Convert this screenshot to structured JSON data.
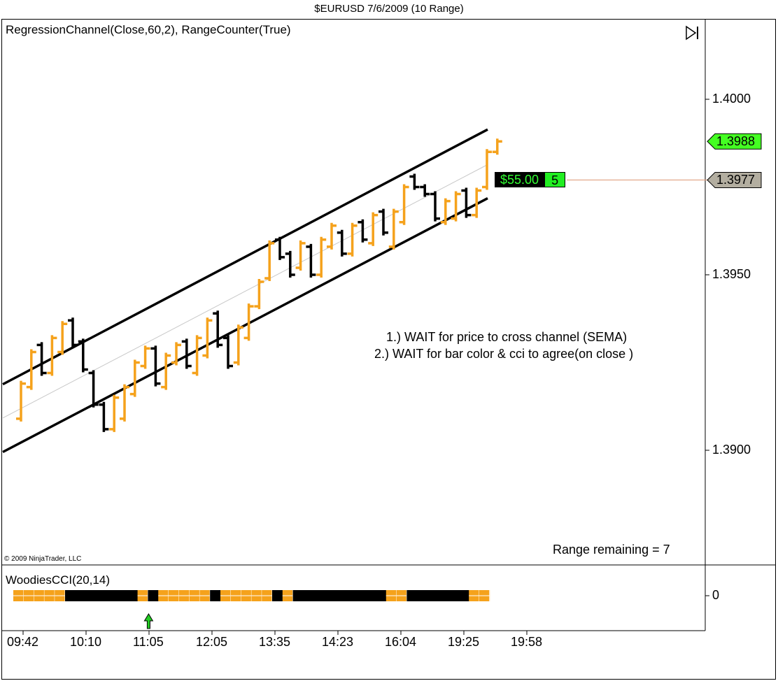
{
  "window": {
    "title": "$EURUSD  7/6/2009 (10 Range)"
  },
  "main_panel": {
    "indicator_label": "RegressionChannel(Close,60,2), RangeCounter(True)",
    "copyright": "© 2009 NinjaTrader, LLC",
    "range_remaining": "Range remaining = 7",
    "notes": [
      "1.) WAIT for price to cross channel (SEMA)",
      "2.) WAIT for bar color & cci to agree(on close )"
    ],
    "position_pl": "$55.00",
    "position_count": "5",
    "icons": [
      "play-to-end-icon"
    ]
  },
  "cci_panel": {
    "indicator_label": "WoodiesCCI(20,14)",
    "zero_label": "0",
    "signal_icon": "up-arrow-icon"
  },
  "colors": {
    "up_bar": "#f5a21c",
    "down_bar": "#000000",
    "channel": "#000000",
    "midline": "#c8c8c8",
    "last_price_tag": "#44ff22",
    "ref_price_tag": "#b3aea0",
    "ref_line": "#e0a080",
    "signal_arrow": "#22cc22"
  },
  "chart_data": [
    {
      "type": "candlestick",
      "title": "$EURUSD  7/6/2009 (10 Range)",
      "y_ticks": [
        1.4,
        1.395,
        1.39
      ],
      "y_tick_labels": [
        "1.4000",
        "1.3950",
        "1.3900"
      ],
      "ylim": [
        1.3855,
        1.4025
      ],
      "x_tick_labels": [
        "09:42",
        "10:10",
        "11:05",
        "12:05",
        "13:35",
        "14:23",
        "16:04",
        "19:25",
        "19:58"
      ],
      "last_price": 1.3988,
      "last_price_label": "1.3988",
      "ref_price": 1.3977,
      "ref_price_label": "1.3977",
      "regression_channel": {
        "upper": [
          1.39188,
          1.39914
        ],
        "middle": [
          1.39092,
          1.39814
        ],
        "lower": [
          1.38995,
          1.39718
        ]
      },
      "bars_note": "10-tick range bars (each bar spans 0.0010); open/close steps",
      "bars": [
        {
          "open": 1.3909,
          "close": 1.3919,
          "dir": "up"
        },
        {
          "open": 1.3918,
          "close": 1.3928,
          "dir": "up"
        },
        {
          "open": 1.393,
          "close": 1.3922,
          "dir": "down"
        },
        {
          "open": 1.3922,
          "close": 1.3932,
          "dir": "up"
        },
        {
          "open": 1.3928,
          "close": 1.3936,
          "dir": "up"
        },
        {
          "open": 1.3937,
          "close": 1.393,
          "dir": "down"
        },
        {
          "open": 1.3931,
          "close": 1.3923,
          "dir": "down"
        },
        {
          "open": 1.3922,
          "close": 1.3913,
          "dir": "down"
        },
        {
          "open": 1.3913,
          "close": 1.3906,
          "dir": "down"
        },
        {
          "open": 1.3906,
          "close": 1.3915,
          "dir": "up"
        },
        {
          "open": 1.3909,
          "close": 1.3918,
          "dir": "up"
        },
        {
          "open": 1.3916,
          "close": 1.3925,
          "dir": "up"
        },
        {
          "open": 1.3924,
          "close": 1.3929,
          "dir": "up"
        },
        {
          "open": 1.3929,
          "close": 1.3919,
          "dir": "down"
        },
        {
          "open": 1.3918,
          "close": 1.3927,
          "dir": "up"
        },
        {
          "open": 1.3925,
          "close": 1.393,
          "dir": "up"
        },
        {
          "open": 1.3931,
          "close": 1.3924,
          "dir": "down"
        },
        {
          "open": 1.3922,
          "close": 1.3932,
          "dir": "up"
        },
        {
          "open": 1.3927,
          "close": 1.3937,
          "dir": "up"
        },
        {
          "open": 1.3939,
          "close": 1.393,
          "dir": "down"
        },
        {
          "open": 1.3932,
          "close": 1.3924,
          "dir": "down"
        },
        {
          "open": 1.3925,
          "close": 1.3935,
          "dir": "up"
        },
        {
          "open": 1.3932,
          "close": 1.3941,
          "dir": "up"
        },
        {
          "open": 1.3941,
          "close": 1.3948,
          "dir": "up"
        },
        {
          "open": 1.3949,
          "close": 1.3959,
          "dir": "up"
        },
        {
          "open": 1.396,
          "close": 1.3955,
          "dir": "down"
        },
        {
          "open": 1.3956,
          "close": 1.395,
          "dir": "down"
        },
        {
          "open": 1.3952,
          "close": 1.3959,
          "dir": "up"
        },
        {
          "open": 1.3958,
          "close": 1.395,
          "dir": "down"
        },
        {
          "open": 1.395,
          "close": 1.396,
          "dir": "up"
        },
        {
          "open": 1.3958,
          "close": 1.3964,
          "dir": "up"
        },
        {
          "open": 1.3962,
          "close": 1.3956,
          "dir": "down"
        },
        {
          "open": 1.3956,
          "close": 1.3964,
          "dir": "up"
        },
        {
          "open": 1.3965,
          "close": 1.396,
          "dir": "down"
        },
        {
          "open": 1.3959,
          "close": 1.3967,
          "dir": "up"
        },
        {
          "open": 1.3968,
          "close": 1.3962,
          "dir": "down"
        },
        {
          "open": 1.3958,
          "close": 1.3968,
          "dir": "up"
        },
        {
          "open": 1.3965,
          "close": 1.3975,
          "dir": "up"
        },
        {
          "open": 1.3978,
          "close": 1.3975,
          "dir": "down"
        },
        {
          "open": 1.3975,
          "close": 1.3973,
          "dir": "down"
        },
        {
          "open": 1.3973,
          "close": 1.3966,
          "dir": "down"
        },
        {
          "open": 1.3965,
          "close": 1.3971,
          "dir": "up"
        },
        {
          "open": 1.3966,
          "close": 1.3973,
          "dir": "up"
        },
        {
          "open": 1.3974,
          "close": 1.3967,
          "dir": "down"
        },
        {
          "open": 1.3967,
          "close": 1.3974,
          "dir": "up"
        },
        {
          "open": 1.3975,
          "close": 1.3985,
          "dir": "up"
        },
        {
          "open": 1.3985,
          "close": 1.3988,
          "dir": "up"
        }
      ]
    },
    {
      "type": "heatmap",
      "title": "WoodiesCCI(20,14)",
      "note": "Woodies CCI trend bar histogram at zero line (orange/black segments)",
      "segments": [
        {
          "color": "orange",
          "count": 5
        },
        {
          "color": "black",
          "count": 7
        },
        {
          "color": "orange",
          "count": 1
        },
        {
          "color": "black",
          "count": 1
        },
        {
          "color": "orange",
          "count": 5
        },
        {
          "color": "black",
          "count": 1
        },
        {
          "color": "orange",
          "count": 5
        },
        {
          "color": "black",
          "count": 1
        },
        {
          "color": "orange",
          "count": 1
        },
        {
          "color": "black",
          "count": 9
        },
        {
          "color": "orange",
          "count": 2
        },
        {
          "color": "black",
          "count": 6
        },
        {
          "color": "orange",
          "count": 2
        }
      ],
      "signal_arrow_bar_index": 13
    }
  ]
}
